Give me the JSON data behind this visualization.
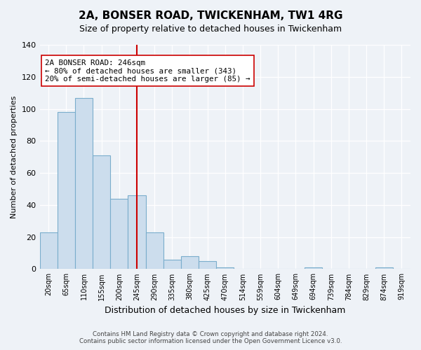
{
  "title": "2A, BONSER ROAD, TWICKENHAM, TW1 4RG",
  "subtitle": "Size of property relative to detached houses in Twickenham",
  "xlabel": "Distribution of detached houses by size in Twickenham",
  "ylabel": "Number of detached properties",
  "bar_labels": [
    "20sqm",
    "65sqm",
    "110sqm",
    "155sqm",
    "200sqm",
    "245sqm",
    "290sqm",
    "335sqm",
    "380sqm",
    "425sqm",
    "470sqm",
    "514sqm",
    "559sqm",
    "604sqm",
    "649sqm",
    "694sqm",
    "739sqm",
    "784sqm",
    "829sqm",
    "874sqm",
    "919sqm"
  ],
  "bar_values": [
    23,
    98,
    107,
    71,
    44,
    46,
    23,
    6,
    8,
    5,
    1,
    0,
    0,
    0,
    0,
    1,
    0,
    0,
    0,
    1,
    0
  ],
  "bar_color": "#ccdded",
  "bar_edgecolor": "#7aadcc",
  "ylim": [
    0,
    140
  ],
  "yticks": [
    0,
    20,
    40,
    60,
    80,
    100,
    120,
    140
  ],
  "vline_x": 5.5,
  "vline_color": "#cc0000",
  "ann_line1": "2A BONSER ROAD: 246sqm",
  "ann_line2": "← 80% of detached houses are smaller (343)",
  "ann_line3": "20% of semi-detached houses are larger (85) →",
  "annotation_box_edgecolor": "#cc0000",
  "footnote1": "Contains HM Land Registry data © Crown copyright and database right 2024.",
  "footnote2": "Contains public sector information licensed under the Open Government Licence v3.0.",
  "background_color": "#eef2f7",
  "plot_bg_color": "#eef2f7",
  "title_fontsize": 11,
  "subtitle_fontsize": 9,
  "ylabel_fontsize": 8,
  "xlabel_fontsize": 9
}
